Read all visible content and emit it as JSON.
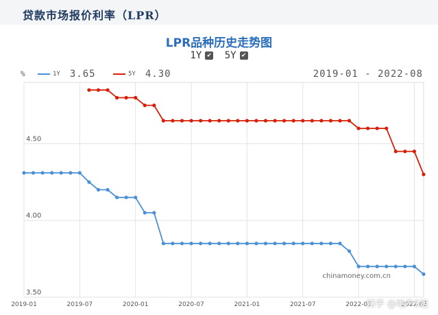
{
  "page_title": "贷款市场报价利率（LPR）",
  "chart_title": "LPR品种历史走势图",
  "toggles": [
    {
      "label": "1Y",
      "checked": true,
      "check_glyph": "✔"
    },
    {
      "label": "5Y",
      "checked": true,
      "check_glyph": "✔"
    }
  ],
  "legend": {
    "unit": "%",
    "items": [
      {
        "name": "1Y",
        "value": "3.65",
        "color": "#4a90d9"
      },
      {
        "name": "5Y",
        "value": "4.30",
        "color": "#d81e06"
      }
    ],
    "date_range": "2019-01 - 2022-08"
  },
  "source_watermark": "chinamoney.com.cn",
  "overlay_watermark": "知乎 @地产S姐",
  "chart_data": {
    "type": "line",
    "ylim": [
      3.5,
      4.9
    ],
    "y_ticks": [
      "3.50",
      "4.00",
      "4.50"
    ],
    "x_ticks": [
      "2019-01",
      "2019-07",
      "2020-01",
      "2020-07",
      "2021-01",
      "2021-07",
      "2022-01",
      "2022-07"
    ],
    "x_range": [
      "2019-01",
      "2022-08"
    ],
    "grid": true,
    "series": [
      {
        "name": "1Y",
        "color": "#4a90d9",
        "x": [
          "2019-01",
          "2019-02",
          "2019-03",
          "2019-04",
          "2019-05",
          "2019-06",
          "2019-07",
          "2019-08",
          "2019-09",
          "2019-10",
          "2019-11",
          "2019-12",
          "2020-01",
          "2020-02",
          "2020-03",
          "2020-04",
          "2020-05",
          "2020-06",
          "2020-07",
          "2020-08",
          "2020-09",
          "2020-10",
          "2020-11",
          "2020-12",
          "2021-01",
          "2021-02",
          "2021-03",
          "2021-04",
          "2021-05",
          "2021-06",
          "2021-07",
          "2021-08",
          "2021-09",
          "2021-10",
          "2021-11",
          "2021-12",
          "2022-01",
          "2022-02",
          "2022-03",
          "2022-04",
          "2022-05",
          "2022-06",
          "2022-07",
          "2022-08"
        ],
        "values": [
          4.31,
          4.31,
          4.31,
          4.31,
          4.31,
          4.31,
          4.31,
          4.25,
          4.2,
          4.2,
          4.15,
          4.15,
          4.15,
          4.05,
          4.05,
          3.85,
          3.85,
          3.85,
          3.85,
          3.85,
          3.85,
          3.85,
          3.85,
          3.85,
          3.85,
          3.85,
          3.85,
          3.85,
          3.85,
          3.85,
          3.85,
          3.85,
          3.85,
          3.85,
          3.85,
          3.8,
          3.7,
          3.7,
          3.7,
          3.7,
          3.7,
          3.7,
          3.7,
          3.65
        ]
      },
      {
        "name": "5Y",
        "color": "#d81e06",
        "x": [
          "2019-08",
          "2019-09",
          "2019-10",
          "2019-11",
          "2019-12",
          "2020-01",
          "2020-02",
          "2020-03",
          "2020-04",
          "2020-05",
          "2020-06",
          "2020-07",
          "2020-08",
          "2020-09",
          "2020-10",
          "2020-11",
          "2020-12",
          "2021-01",
          "2021-02",
          "2021-03",
          "2021-04",
          "2021-05",
          "2021-06",
          "2021-07",
          "2021-08",
          "2021-09",
          "2021-10",
          "2021-11",
          "2021-12",
          "2022-01",
          "2022-02",
          "2022-03",
          "2022-04",
          "2022-05",
          "2022-06",
          "2022-07",
          "2022-08"
        ],
        "values": [
          4.85,
          4.85,
          4.85,
          4.8,
          4.8,
          4.8,
          4.75,
          4.75,
          4.65,
          4.65,
          4.65,
          4.65,
          4.65,
          4.65,
          4.65,
          4.65,
          4.65,
          4.65,
          4.65,
          4.65,
          4.65,
          4.65,
          4.65,
          4.65,
          4.65,
          4.65,
          4.65,
          4.65,
          4.65,
          4.6,
          4.6,
          4.6,
          4.6,
          4.45,
          4.45,
          4.45,
          4.3
        ]
      }
    ]
  }
}
